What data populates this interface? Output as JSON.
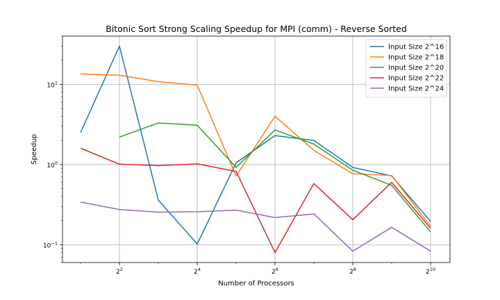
{
  "chart_data": {
    "type": "line",
    "title": "Bitonic Sort Strong Scaling Speedup for MPI (comm) - Reverse Sorted",
    "xlabel": "Number of Processors",
    "ylabel": "Speedup",
    "x_scale": "log2",
    "y_scale": "log10",
    "xlim": [
      1.45,
      1448
    ],
    "ylim": [
      0.06,
      40
    ],
    "x_ticks": [
      {
        "value": 4,
        "base": "2",
        "exp": "2"
      },
      {
        "value": 16,
        "base": "2",
        "exp": "4"
      },
      {
        "value": 64,
        "base": "2",
        "exp": "6"
      },
      {
        "value": 256,
        "base": "2",
        "exp": "8"
      },
      {
        "value": 1024,
        "base": "2",
        "exp": "10"
      }
    ],
    "y_ticks": [
      {
        "value": 0.1,
        "base": "10",
        "exp": "−1"
      },
      {
        "value": 1,
        "base": "10",
        "exp": "0"
      },
      {
        "value": 10,
        "base": "10",
        "exp": "1"
      }
    ],
    "grid": true,
    "legend_position": "top-right",
    "x": [
      2,
      4,
      8,
      16,
      32,
      64,
      128,
      256,
      512,
      1024
    ],
    "series": [
      {
        "name": "Input Size 2^16",
        "color": "#1f77b4",
        "values": [
          2.5,
          30,
          0.36,
          0.102,
          1.05,
          2.3,
          2.0,
          0.92,
          0.72,
          0.195
        ]
      },
      {
        "name": "Input Size 2^18",
        "color": "#ff7f0e",
        "values": [
          13.5,
          13.0,
          10.8,
          9.8,
          0.72,
          4.0,
          1.5,
          0.77,
          0.73,
          0.17
        ]
      },
      {
        "name": "Input Size 2^20",
        "color": "#2ca02c",
        "values": [
          null,
          2.2,
          3.3,
          3.1,
          0.92,
          2.7,
          1.8,
          0.85,
          0.55,
          0.145
        ]
      },
      {
        "name": "Input Size 2^22",
        "color": "#d62728",
        "values": [
          1.6,
          1.01,
          0.97,
          1.02,
          0.82,
          0.08,
          0.58,
          0.205,
          0.6,
          0.16
        ]
      },
      {
        "name": "Input Size 2^24",
        "color": "#9467bd",
        "values": [
          0.34,
          0.275,
          0.255,
          0.258,
          0.27,
          0.218,
          0.242,
          0.083,
          0.165,
          0.083
        ]
      }
    ]
  }
}
